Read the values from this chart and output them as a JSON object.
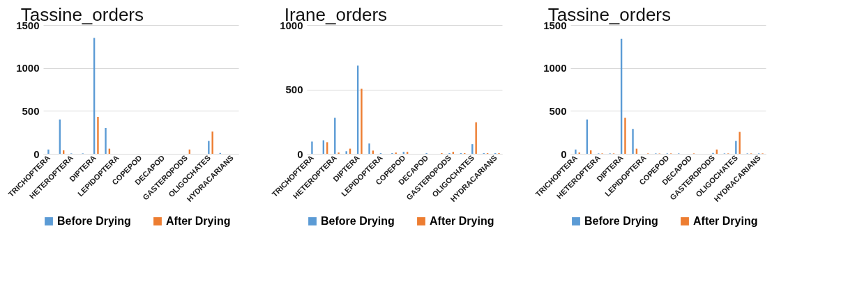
{
  "chart_data": [
    {
      "type": "bar",
      "title": "Tassine_orders",
      "categories": [
        "TRICHOPTERA",
        null,
        "HETEROPTERA",
        null,
        "DIPTERA",
        null,
        "LEPIDOPTERA",
        null,
        "COPEPOD",
        null,
        "DECAPOD",
        null,
        "GASTEROPODS",
        null,
        "OLIGOCHATES",
        null,
        "HYDRACARIANS"
      ],
      "ylim": [
        0,
        1500
      ],
      "yticks": [
        0,
        500,
        1000,
        1500
      ],
      "grid": "y",
      "legend": "bottom",
      "series": [
        {
          "name": "Before Drying",
          "color": "#5b9bd5",
          "values": [
            50,
            400,
            5,
            5,
            1350,
            300,
            0,
            0,
            0,
            0,
            0,
            0,
            0,
            0,
            150,
            10,
            0
          ]
        },
        {
          "name": "After Drying",
          "color": "#ed7d31",
          "values": [
            0,
            40,
            0,
            0,
            430,
            60,
            0,
            0,
            0,
            0,
            0,
            0,
            50,
            0,
            260,
            0,
            0
          ]
        }
      ]
    },
    {
      "type": "bar",
      "title": "Irane_orders",
      "categories": [
        "TRICHOPTERA",
        null,
        "HETEROPTERA",
        null,
        "DIPTERA",
        null,
        "LEPIDOPTERA",
        null,
        "COPEPOD",
        null,
        "DECAPOD",
        null,
        "GASTEROPODS",
        null,
        "OLIGOCHATES",
        null,
        "HYDRACARIANS"
      ],
      "ylim": [
        0,
        1000
      ],
      "yticks": [
        0,
        500,
        1000
      ],
      "grid": "y",
      "legend": "bottom",
      "series": [
        {
          "name": "Before Drying",
          "color": "#5b9bd5",
          "values": [
            95,
            105,
            280,
            20,
            685,
            80,
            5,
            5,
            15,
            0,
            5,
            0,
            5,
            5,
            75,
            5,
            5
          ]
        },
        {
          "name": "After Drying",
          "color": "#ed7d31",
          "values": [
            0,
            90,
            10,
            40,
            505,
            25,
            0,
            10,
            15,
            0,
            0,
            5,
            15,
            5,
            245,
            5,
            5
          ]
        }
      ]
    },
    {
      "type": "bar",
      "title": "Tassine_orders",
      "categories": [
        "TRICHOPTERA",
        null,
        "HETEROPTERA",
        null,
        "DIPTERA",
        null,
        "LEPIDOPTERA",
        null,
        "COPEPOD",
        null,
        "DECAPOD",
        null,
        "GASTEROPODS",
        null,
        "OLIGOCHATES",
        null,
        "HYDRACARIANS"
      ],
      "ylim": [
        0,
        1500
      ],
      "yticks": [
        0,
        500,
        1000,
        1500
      ],
      "grid": "y",
      "legend": "bottom",
      "series": [
        {
          "name": "Before Drying",
          "color": "#5b9bd5",
          "values": [
            50,
            400,
            5,
            5,
            1340,
            290,
            0,
            5,
            5,
            5,
            0,
            0,
            10,
            5,
            150,
            5,
            5
          ]
        },
        {
          "name": "After Drying",
          "color": "#ed7d31",
          "values": [
            15,
            40,
            5,
            5,
            420,
            60,
            5,
            5,
            5,
            0,
            5,
            0,
            50,
            5,
            255,
            5,
            5
          ]
        }
      ]
    }
  ]
}
